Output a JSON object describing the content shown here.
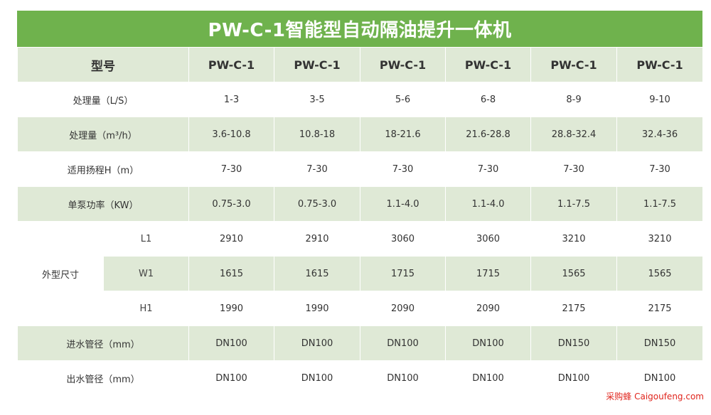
{
  "title": "PW-C-1智能型自动隔油提升一体机",
  "header": {
    "label": "型号",
    "models": [
      "PW-C-1",
      "PW-C-1",
      "PW-C-1",
      "PW-C-1",
      "PW-C-1",
      "PW-C-1"
    ]
  },
  "rows": [
    {
      "label": "处理量（L/S）",
      "values": [
        "1-3",
        "3-5",
        "5-6",
        "6-8",
        "8-9",
        "9-10"
      ]
    },
    {
      "label": "处理量（m³/h）",
      "values": [
        "3.6-10.8",
        "10.8-18",
        "18-21.6",
        "21.6-28.8",
        "28.8-32.4",
        "32.4-36"
      ]
    },
    {
      "label": "适用扬程H（m）",
      "values": [
        "7-30",
        "7-30",
        "7-30",
        "7-30",
        "7-30",
        "7-30"
      ]
    },
    {
      "label": "单泵功率（KW）",
      "values": [
        "0.75-3.0",
        "0.75-3.0",
        "1.1-4.0",
        "1.1-4.0",
        "1.1-7.5",
        "1.1-7.5"
      ]
    }
  ],
  "dimensions": {
    "label": "外型尺寸",
    "rows": [
      {
        "label": "L1",
        "values": [
          "2910",
          "2910",
          "3060",
          "3060",
          "3210",
          "3210"
        ]
      },
      {
        "label": "W1",
        "values": [
          "1615",
          "1615",
          "1715",
          "1715",
          "1565",
          "1565"
        ]
      },
      {
        "label": "H1",
        "values": [
          "1990",
          "1990",
          "2090",
          "2090",
          "2175",
          "2175"
        ]
      }
    ]
  },
  "pipes": [
    {
      "label": "进水管径（mm）",
      "values": [
        "DN100",
        "DN100",
        "DN100",
        "DN100",
        "DN150",
        "DN150"
      ]
    },
    {
      "label": "出水管径（mm）",
      "values": [
        "DN100",
        "DN100",
        "DN100",
        "DN100",
        "DN100",
        "DN100"
      ]
    }
  ],
  "watermark": "采购蜂 Caigoufeng.com",
  "colors": {
    "title_bg": "#6fb24d",
    "band": "#dfe9d6",
    "watermark": "#e0241c"
  }
}
